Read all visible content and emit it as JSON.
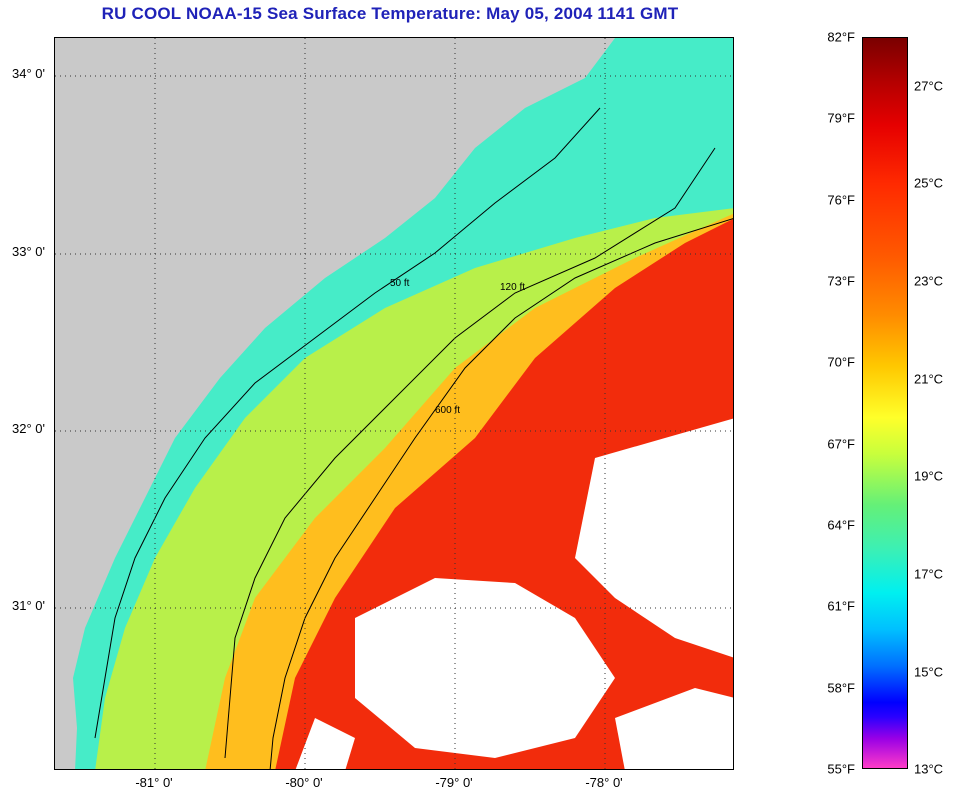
{
  "title": "RU COOL  NOAA-15  Sea Surface Temperature:  May 05, 2004 1141 GMT",
  "map": {
    "lat_labels": [
      "34° 0'",
      "33° 0'",
      "32° 0'",
      "31° 0'"
    ],
    "lon_labels": [
      "-81° 0'",
      "-80° 0'",
      "-79° 0'",
      "-78° 0'"
    ],
    "depth_contours": [
      "50 ft",
      "120 ft",
      "600 ft"
    ],
    "colors": {
      "land": "#c9c9c9",
      "cloud": "#ffffff",
      "shelf_cool": "#46ecc8",
      "mid_shelf": "#b8f04a",
      "slope_warm": "#ffbe1e",
      "gulf_stream": "#f22c0c"
    }
  },
  "colorbar": {
    "fahrenheit": [
      "82°F",
      "79°F",
      "76°F",
      "73°F",
      "70°F",
      "67°F",
      "64°F",
      "61°F",
      "58°F",
      "55°F"
    ],
    "celsius": [
      "27°C",
      "25°C",
      "23°C",
      "21°C",
      "19°C",
      "17°C",
      "15°C",
      "13°C"
    ]
  }
}
